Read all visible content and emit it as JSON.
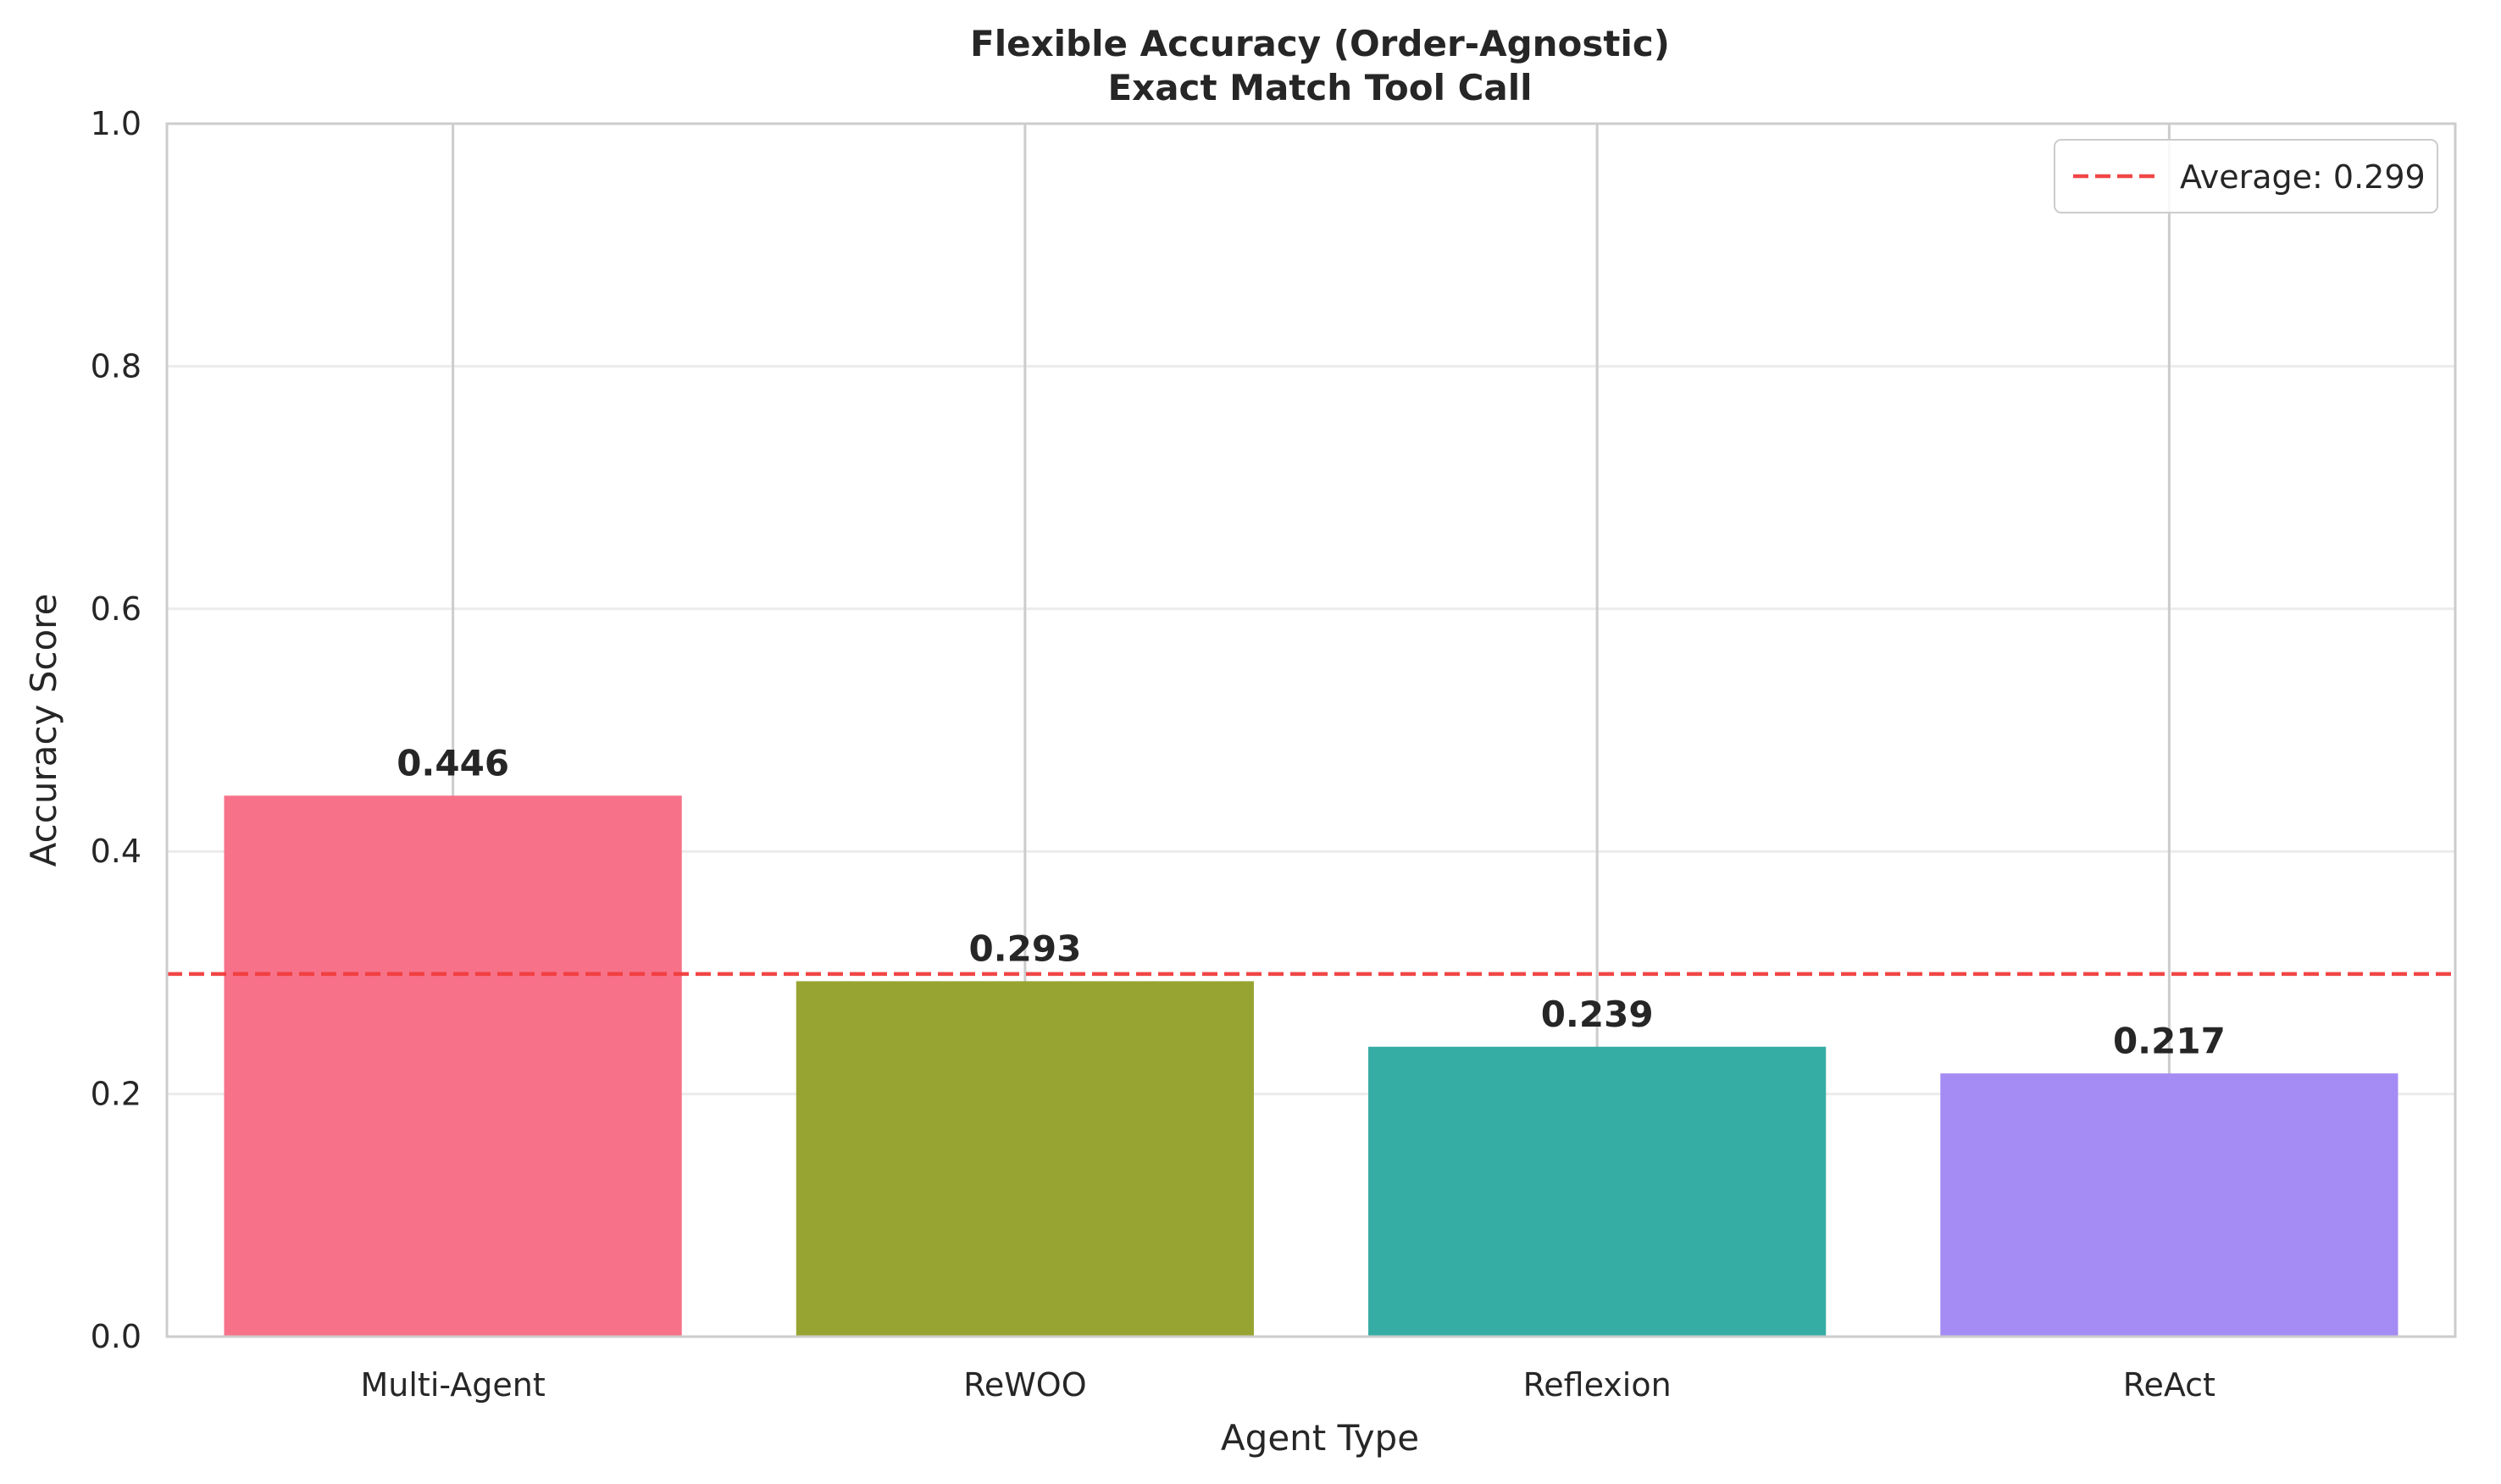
{
  "chart_data": {
    "type": "bar",
    "title": "Flexible Accuracy (Order-Agnostic)",
    "subtitle": "Exact Match Tool Call",
    "xlabel": "Agent Type",
    "ylabel": "Accuracy Score",
    "categories": [
      "Multi-Agent",
      "ReWOO",
      "Reflexion",
      "ReAct"
    ],
    "values": [
      0.446,
      0.293,
      0.239,
      0.217
    ],
    "value_labels": [
      "0.446",
      "0.293",
      "0.239",
      "0.217"
    ],
    "colors": [
      "#f77189",
      "#97a431",
      "#36ada4",
      "#a48cf4"
    ],
    "ylim": [
      0,
      1.0
    ],
    "yticks": [
      0.0,
      0.2,
      0.4,
      0.6,
      0.8,
      1.0
    ],
    "ytick_labels": [
      "0.0",
      "0.2",
      "0.4",
      "0.6",
      "0.8",
      "1.0"
    ],
    "average": {
      "value": 0.299,
      "label": "Average: 0.299",
      "color": "#f03c3c",
      "style": "dashed"
    },
    "legend_position": "top-right",
    "grid": true
  }
}
